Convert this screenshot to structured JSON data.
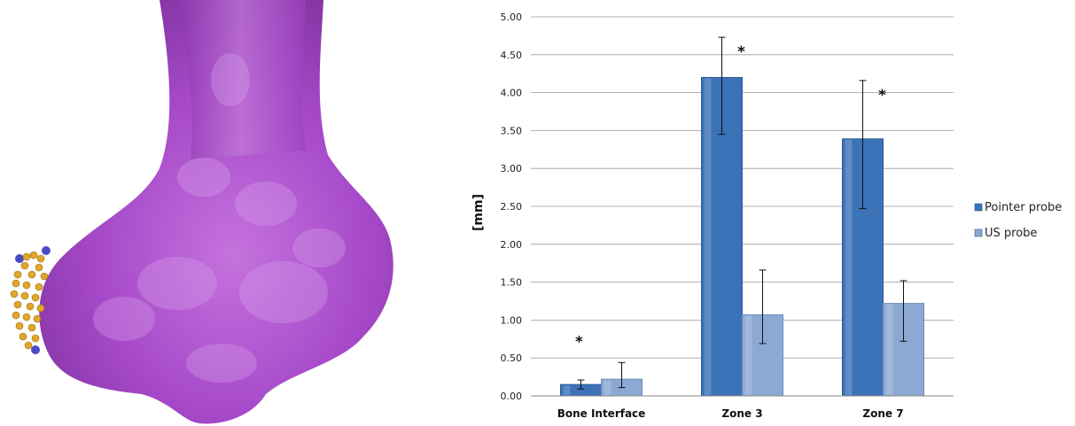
{
  "chart_data": {
    "type": "bar",
    "ylabel": "[mm]",
    "ylim": [
      0,
      5
    ],
    "ytick_step": 0.5,
    "yticks": [
      "0.00",
      "0.50",
      "1.00",
      "1.50",
      "2.00",
      "2.50",
      "3.00",
      "3.50",
      "4.00",
      "4.50",
      "5.00"
    ],
    "categories": [
      "Bone Interface",
      "Zone 3",
      "Zone 7"
    ],
    "series": [
      {
        "name": "Pointer probe",
        "values": [
          0.15,
          4.2,
          3.39
        ],
        "error_low": [
          0.09,
          3.45,
          2.47
        ],
        "error_high": [
          0.21,
          4.73,
          4.16
        ],
        "color": "#3b72b8"
      },
      {
        "name": "US probe",
        "values": [
          0.22,
          1.07,
          1.22
        ],
        "error_low": [
          0.11,
          0.69,
          0.72
        ],
        "error_high": [
          0.44,
          1.66,
          1.52
        ],
        "color": "#8ba9d3"
      }
    ],
    "annotations": [
      "*",
      "*",
      "*"
    ],
    "grid": true,
    "legend_position": "right"
  },
  "colors": {
    "bone": "#a642c9",
    "marker_yellow": "#e0a72a",
    "marker_blue": "#4b4bc8"
  }
}
